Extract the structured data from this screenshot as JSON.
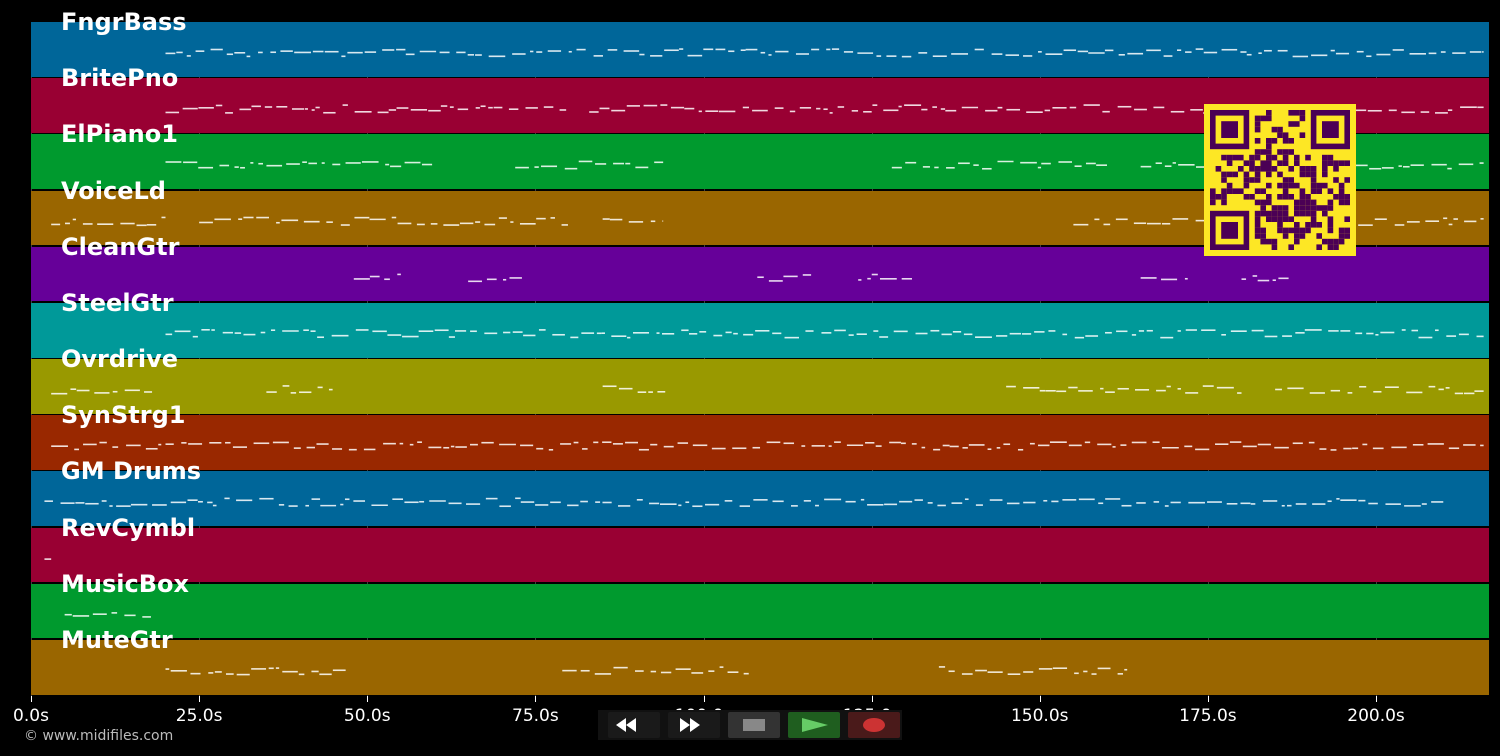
{
  "tracks": [
    {
      "name": "FngrBass",
      "color": "#006699"
    },
    {
      "name": "BritePno",
      "color": "#990033"
    },
    {
      "name": "ElPiano1",
      "color": "#009a2e"
    },
    {
      "name": "VoiceLd",
      "color": "#9a6600"
    },
    {
      "name": "CleanGtr",
      "color": "#660099"
    },
    {
      "name": "SteelGtr",
      "color": "#009999"
    },
    {
      "name": "Ovrdrive",
      "color": "#999900"
    },
    {
      "name": "SynStrg1",
      "color": "#992800"
    },
    {
      "name": "GM Drums",
      "color": "#006699"
    },
    {
      "name": "RevCymbl",
      "color": "#990033"
    },
    {
      "name": "MusicBox",
      "color": "#009a2e"
    },
    {
      "name": "MuteGtr",
      "color": "#9a6600"
    }
  ],
  "timeline": {
    "ticks": [
      "0.0s",
      "25.0s",
      "50.0s",
      "75.0s",
      "100.0s",
      "125.0s",
      "150.0s",
      "175.0s",
      "200.0s"
    ],
    "tick_values": [
      0,
      25,
      50,
      75,
      100,
      125,
      150,
      175,
      200
    ],
    "max_seconds": 216.8
  },
  "controls": [
    {
      "name": "rewind-button",
      "icon": "rewind-icon",
      "color": "#1a1a1a",
      "glyph_color": "#ffffff"
    },
    {
      "name": "fast-forward-button",
      "icon": "fast-forward-icon",
      "color": "#1a1a1a",
      "glyph_color": "#ffffff"
    },
    {
      "name": "stop-button",
      "icon": "stop-icon",
      "color": "#333333",
      "glyph_color": "#888888"
    },
    {
      "name": "play-button",
      "icon": "play-icon",
      "color": "#1f5e1f",
      "glyph_color": "#66cc66"
    },
    {
      "name": "record-button",
      "icon": "record-icon",
      "color": "#4a1a1a",
      "glyph_color": "#cc3333"
    }
  ],
  "copyright": "© www.midifiles.com",
  "qr_code": {
    "fg": "#4b0055",
    "bg": "#fde725"
  }
}
